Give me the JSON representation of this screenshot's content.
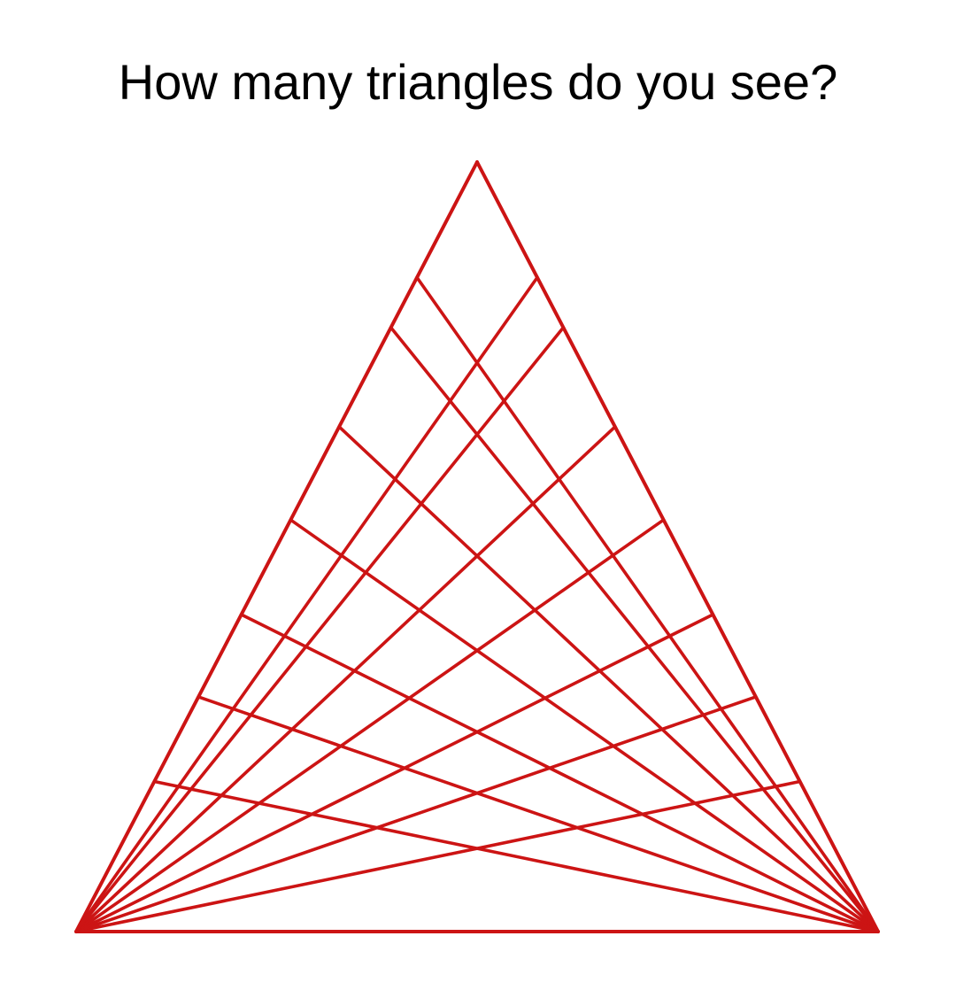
{
  "title": "How many triangles do you see?",
  "colors": {
    "background": "#ffffff",
    "title_text": "#000000",
    "line": "#cc1414"
  },
  "figure": {
    "shape": "triangle",
    "inner_lines_from_each_base_corner": 7
  }
}
